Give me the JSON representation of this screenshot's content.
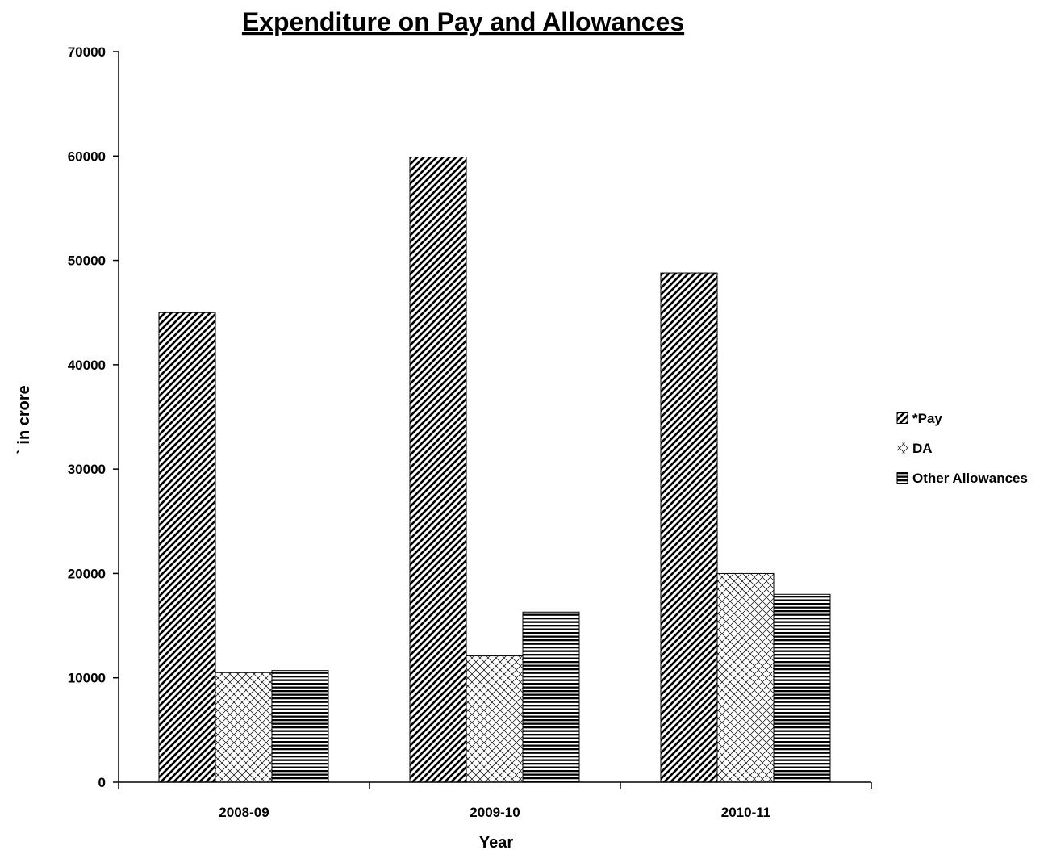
{
  "chart_data": {
    "type": "bar",
    "title": "Expenditure on Pay and Allowances",
    "xlabel": "Year",
    "ylabel": "` in crore",
    "categories": [
      "2008-09",
      "2009-10",
      "2010-11"
    ],
    "series": [
      {
        "name": "*Pay",
        "values": [
          45000,
          59900,
          48800
        ],
        "pattern": "diagonal-hatch"
      },
      {
        "name": "DA",
        "values": [
          10500,
          12100,
          20000
        ],
        "pattern": "cross-hatch"
      },
      {
        "name": "Other Allowances",
        "values": [
          10700,
          16300,
          18000
        ],
        "pattern": "horizontal-lines"
      }
    ],
    "ylim": [
      0,
      70000
    ],
    "yticks": [
      "0",
      "10000",
      "20000",
      "30000",
      "40000",
      "50000",
      "60000",
      "70000"
    ],
    "grid": false,
    "legend_position": "right",
    "colors": {
      "bar_stroke": "#000000",
      "bar_fill": "#ffffff",
      "hatch": "#000000"
    }
  }
}
